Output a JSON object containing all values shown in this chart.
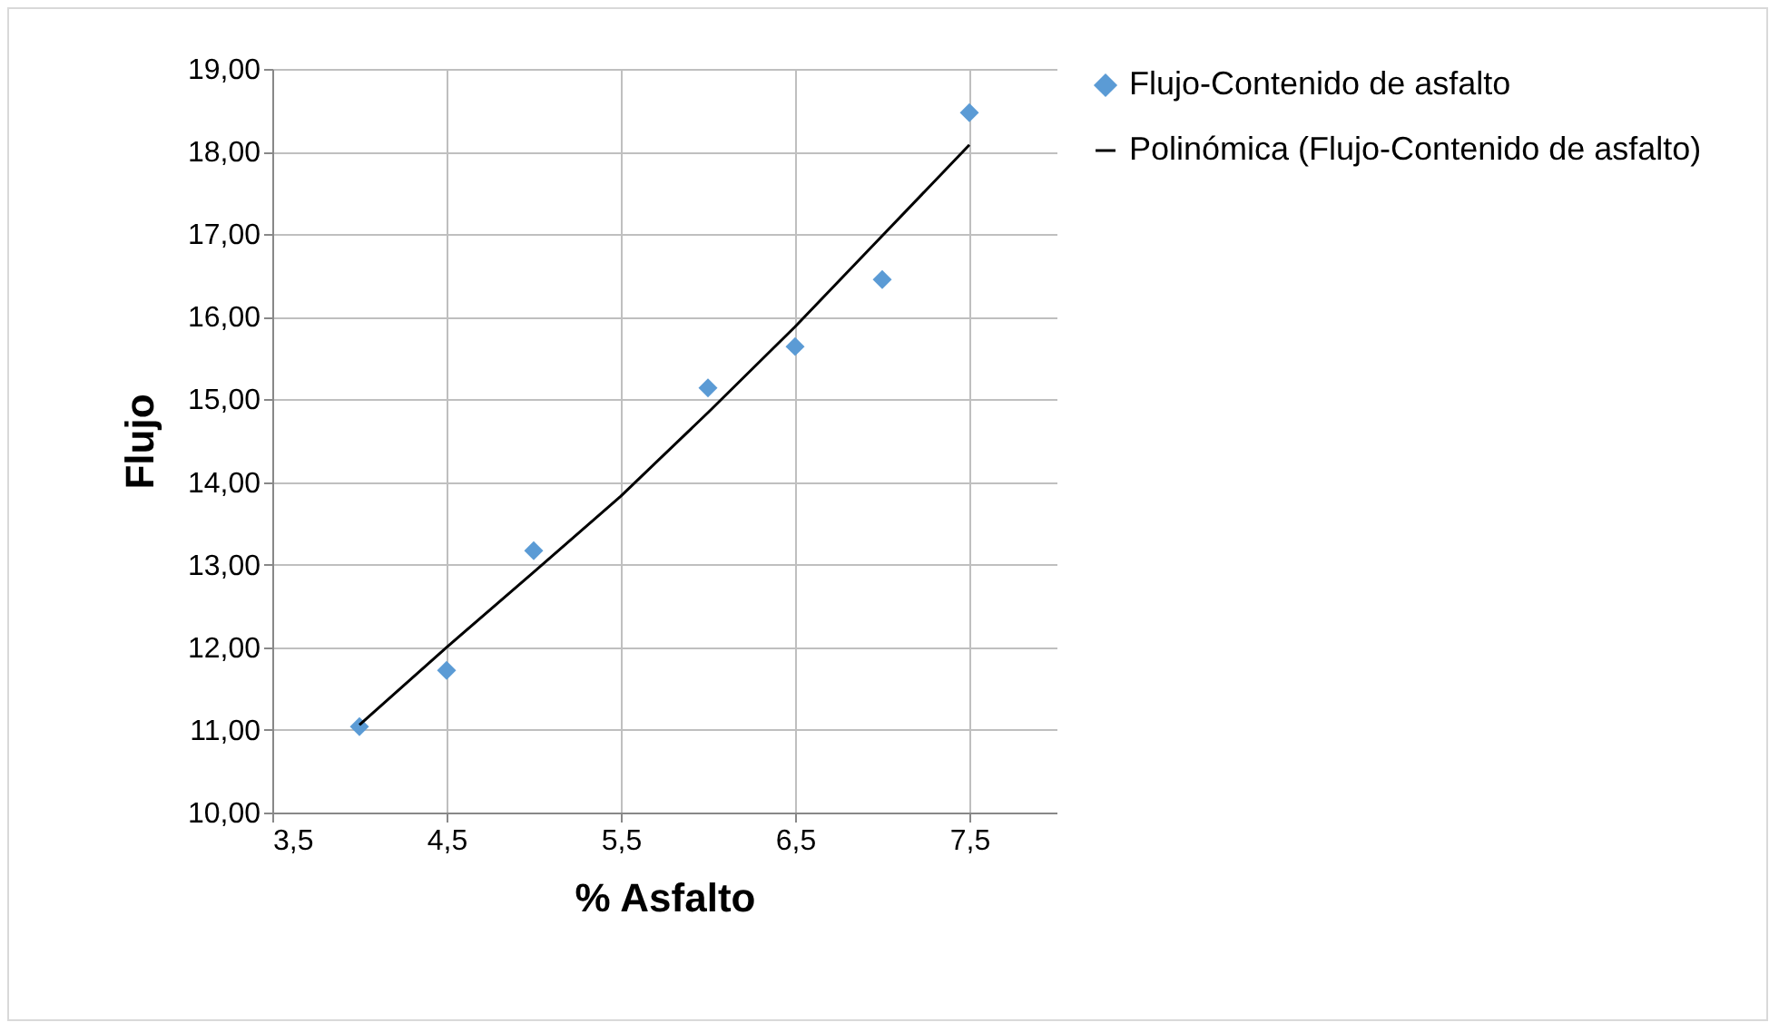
{
  "chart_data": {
    "type": "scatter",
    "xlabel": "% Asfalto",
    "ylabel": "Flujo",
    "xlim": [
      3.5,
      8
    ],
    "ylim": [
      10,
      19
    ],
    "xticks": [
      {
        "value": 3.5,
        "label": "3,5"
      },
      {
        "value": 4.5,
        "label": "4,5"
      },
      {
        "value": 5.5,
        "label": "5,5"
      },
      {
        "value": 6.5,
        "label": "6,5"
      },
      {
        "value": 7.5,
        "label": "7,5"
      }
    ],
    "yticks": [
      {
        "value": 10,
        "label": "10,00"
      },
      {
        "value": 11,
        "label": "11,00"
      },
      {
        "value": 12,
        "label": "12,00"
      },
      {
        "value": 13,
        "label": "13,00"
      },
      {
        "value": 14,
        "label": "14,00"
      },
      {
        "value": 15,
        "label": "15,00"
      },
      {
        "value": 16,
        "label": "16,00"
      },
      {
        "value": 17,
        "label": "17,00"
      },
      {
        "value": 18,
        "label": "18,00"
      },
      {
        "value": 19,
        "label": "19,00"
      }
    ],
    "grid": true,
    "legend": "right",
    "series": [
      {
        "name": "Flujo-Contenido de asfalto",
        "marker": "diamond",
        "color": "#5b9bd5",
        "x": [
          4,
          4.5,
          5,
          6,
          6.5,
          7,
          7.5
        ],
        "values": [
          11.04,
          11.72,
          13.17,
          15.14,
          15.64,
          16.45,
          18.47
        ]
      },
      {
        "name": "Polinómica (Flujo-Contenido de asfalto)",
        "type": "line",
        "marker": "none",
        "line_style": "solid",
        "color": "#000000",
        "x": [
          4,
          4.5,
          5,
          5.5,
          6,
          6.5,
          7,
          7.5
        ],
        "values": [
          11.06,
          12.0,
          12.91,
          13.83,
          14.84,
          15.88,
          16.98,
          18.08
        ]
      }
    ]
  }
}
